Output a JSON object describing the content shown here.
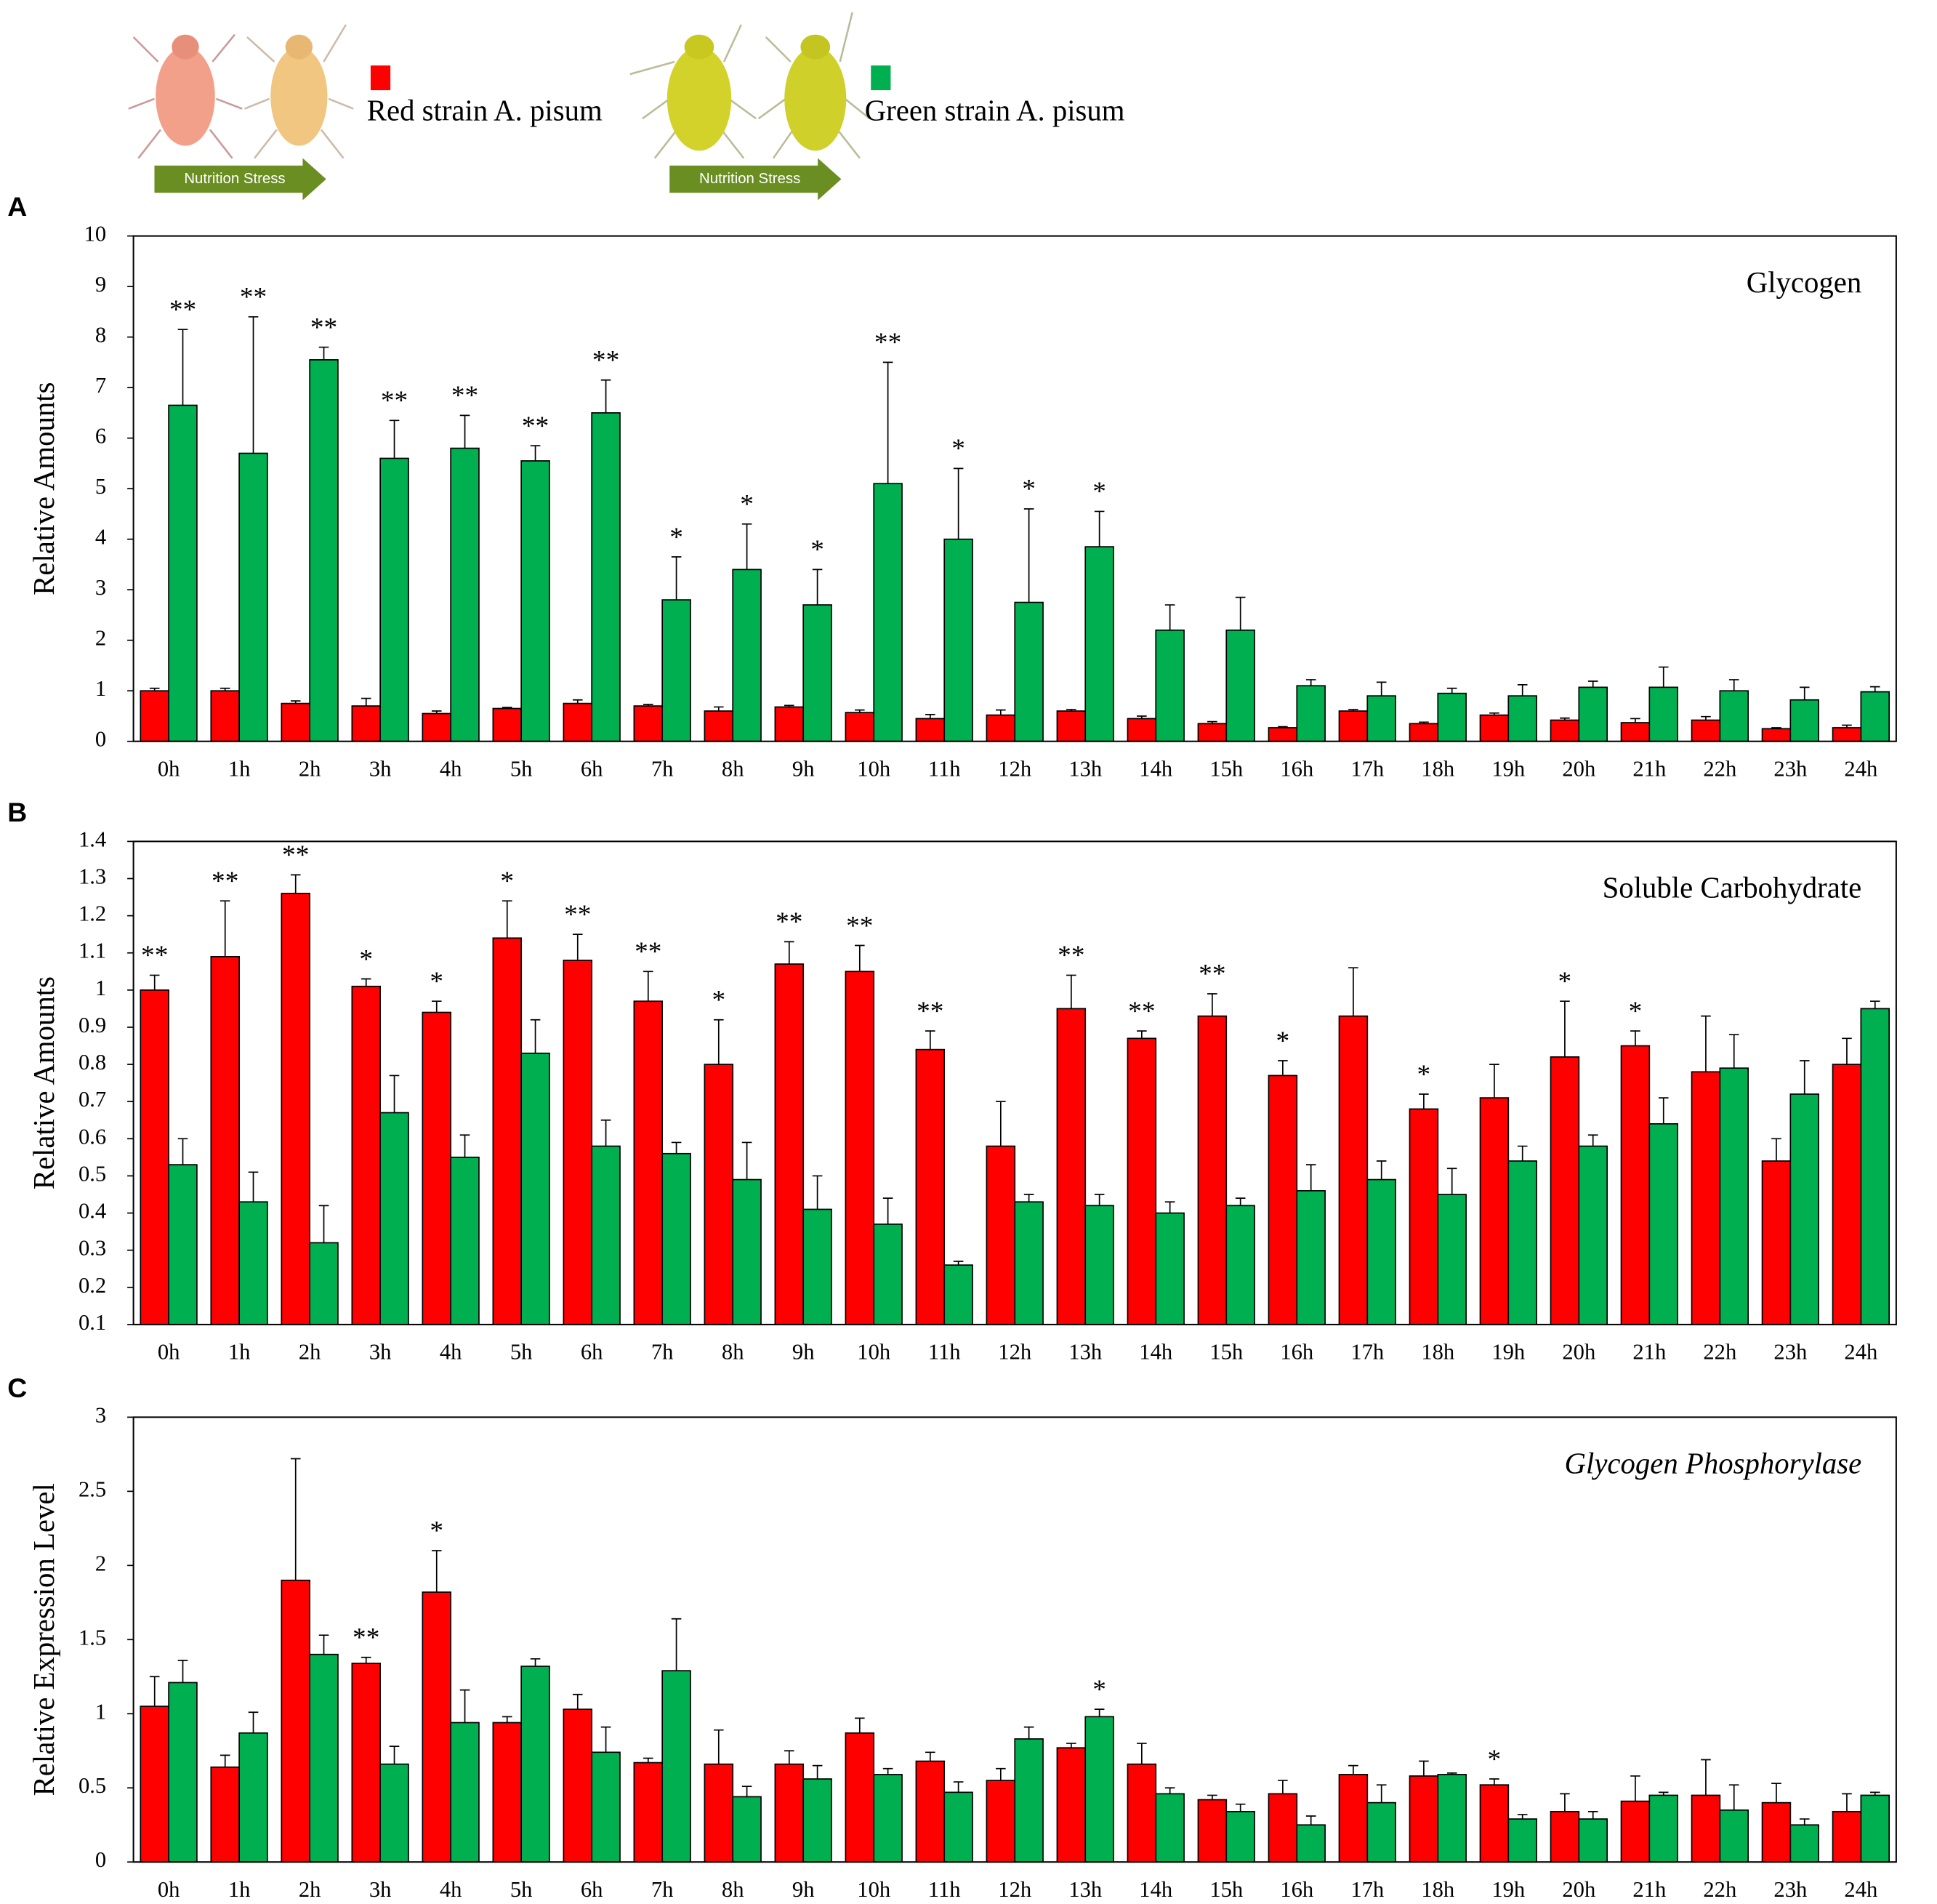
{
  "header": {
    "arrow_labels": [
      "Nutrition Stress",
      "Nutrition Stress"
    ]
  },
  "chart_data": [
    {
      "type": "bar",
      "panel": "A",
      "title": "Glycogen",
      "ylabel": "Relative Amounts",
      "categories": [
        "0h",
        "1h",
        "2h",
        "3h",
        "4h",
        "5h",
        "6h",
        "7h",
        "8h",
        "9h",
        "10h",
        "11h",
        "12h",
        "13h",
        "14h",
        "15h",
        "16h",
        "17h",
        "18h",
        "19h",
        "20h",
        "21h",
        "22h",
        "23h",
        "24h"
      ],
      "series": [
        {
          "name": "Red strain A. pisum",
          "color": "#ff0000",
          "values": [
            1.0,
            1.0,
            0.75,
            0.7,
            0.55,
            0.65,
            0.75,
            0.7,
            0.6,
            0.68,
            0.57,
            0.45,
            0.52,
            0.6,
            0.45,
            0.35,
            0.27,
            0.6,
            0.35,
            0.52,
            0.42,
            0.37,
            0.42,
            0.25,
            0.27
          ],
          "errors": [
            0.05,
            0.05,
            0.05,
            0.15,
            0.05,
            0.02,
            0.07,
            0.03,
            0.08,
            0.03,
            0.05,
            0.08,
            0.1,
            0.03,
            0.05,
            0.04,
            0.02,
            0.03,
            0.03,
            0.04,
            0.04,
            0.08,
            0.07,
            0.02,
            0.05
          ]
        },
        {
          "name": "Green strain A. pisum",
          "color": "#00b050",
          "values": [
            6.65,
            5.7,
            7.55,
            5.6,
            5.8,
            5.55,
            6.5,
            2.8,
            3.4,
            2.7,
            5.1,
            4.0,
            2.75,
            3.85,
            2.2,
            2.2,
            1.1,
            0.9,
            0.95,
            0.9,
            1.07,
            1.07,
            1.0,
            0.82,
            0.98
          ],
          "errors": [
            1.5,
            2.7,
            0.25,
            0.75,
            0.65,
            0.3,
            0.65,
            0.85,
            0.9,
            0.7,
            2.4,
            1.4,
            1.85,
            0.7,
            0.5,
            0.65,
            0.12,
            0.27,
            0.1,
            0.22,
            0.12,
            0.4,
            0.22,
            0.25,
            0.1
          ]
        }
      ],
      "annotations": [
        "**",
        "**",
        "**",
        "**",
        "**",
        "**",
        "**",
        "*",
        "*",
        "*",
        "**",
        "*",
        "*",
        "*",
        null,
        null,
        null,
        null,
        null,
        null,
        null,
        null,
        null,
        null,
        null
      ],
      "ylim": [
        0,
        10
      ],
      "yticks": [
        0,
        1,
        2,
        3,
        4,
        5,
        6,
        7,
        8,
        9,
        10
      ]
    },
    {
      "type": "bar",
      "panel": "B",
      "title": "Soluble Carbohydrate",
      "ylabel": "Relative Amounts",
      "categories": [
        "0h",
        "1h",
        "2h",
        "3h",
        "4h",
        "5h",
        "6h",
        "7h",
        "8h",
        "9h",
        "10h",
        "11h",
        "12h",
        "13h",
        "14h",
        "15h",
        "16h",
        "17h",
        "18h",
        "19h",
        "20h",
        "21h",
        "22h",
        "23h",
        "24h"
      ],
      "series": [
        {
          "color": "#ff0000",
          "values": [
            1.0,
            1.09,
            1.26,
            1.01,
            0.94,
            1.14,
            1.08,
            0.97,
            0.8,
            1.07,
            1.05,
            0.84,
            0.58,
            0.95,
            0.87,
            0.93,
            0.77,
            0.93,
            0.68,
            0.71,
            0.82,
            0.85,
            0.78,
            0.54,
            0.8
          ],
          "errors": [
            0.04,
            0.15,
            0.05,
            0.02,
            0.03,
            0.1,
            0.07,
            0.08,
            0.12,
            0.06,
            0.07,
            0.05,
            0.12,
            0.09,
            0.02,
            0.06,
            0.04,
            0.13,
            0.04,
            0.09,
            0.15,
            0.04,
            0.15,
            0.06,
            0.07
          ]
        },
        {
          "color": "#00b050",
          "values": [
            0.53,
            0.43,
            0.32,
            0.67,
            0.55,
            0.83,
            0.58,
            0.56,
            0.49,
            0.41,
            0.37,
            0.26,
            0.43,
            0.42,
            0.4,
            0.42,
            0.46,
            0.49,
            0.45,
            0.54,
            0.58,
            0.64,
            0.79,
            0.72,
            0.95
          ],
          "errors": [
            0.07,
            0.08,
            0.1,
            0.1,
            0.06,
            0.09,
            0.07,
            0.03,
            0.1,
            0.09,
            0.07,
            0.01,
            0.02,
            0.03,
            0.03,
            0.02,
            0.07,
            0.05,
            0.07,
            0.04,
            0.03,
            0.07,
            0.09,
            0.09,
            0.02
          ]
        }
      ],
      "annotations": [
        "**",
        "**",
        "**",
        "*",
        "*",
        "*",
        "**",
        "**",
        "*",
        "**",
        "**",
        "**",
        null,
        "**",
        "**",
        "**",
        "*",
        null,
        "*",
        null,
        "*",
        "*",
        null,
        null,
        null
      ],
      "ylim": [
        0.1,
        1.4
      ],
      "yticks": [
        0.1,
        0.2,
        0.3,
        0.4,
        0.5,
        0.6,
        0.7,
        0.8,
        0.9,
        1,
        1.1,
        1.2,
        1.3,
        1.4
      ]
    },
    {
      "type": "bar",
      "panel": "C",
      "title": "Glycogen Phosphorylase",
      "title_italic": true,
      "ylabel": "Relative Expression Level",
      "categories": [
        "0h",
        "1h",
        "2h",
        "3h",
        "4h",
        "5h",
        "6h",
        "7h",
        "8h",
        "9h",
        "10h",
        "11h",
        "12h",
        "13h",
        "14h",
        "15h",
        "16h",
        "17h",
        "18h",
        "19h",
        "20h",
        "21h",
        "22h",
        "23h",
        "24h"
      ],
      "series": [
        {
          "color": "#ff0000",
          "values": [
            1.05,
            0.64,
            1.9,
            1.34,
            1.82,
            0.94,
            1.03,
            0.67,
            0.66,
            0.66,
            0.87,
            0.68,
            0.55,
            0.77,
            0.66,
            0.42,
            0.46,
            0.59,
            0.58,
            0.52,
            0.34,
            0.41,
            0.45,
            0.4,
            0.34
          ],
          "errors": [
            0.2,
            0.08,
            0.82,
            0.04,
            0.28,
            0.04,
            0.1,
            0.03,
            0.23,
            0.09,
            0.1,
            0.06,
            0.08,
            0.03,
            0.14,
            0.03,
            0.09,
            0.06,
            0.1,
            0.04,
            0.12,
            0.17,
            0.24,
            0.13,
            0.12
          ]
        },
        {
          "color": "#00b050",
          "values": [
            1.21,
            0.87,
            1.4,
            0.66,
            0.94,
            1.32,
            0.74,
            1.29,
            0.44,
            0.56,
            0.59,
            0.47,
            0.83,
            0.98,
            0.46,
            0.34,
            0.25,
            0.4,
            0.59,
            0.29,
            0.29,
            0.45,
            0.35,
            0.25,
            0.45
          ],
          "errors": [
            0.15,
            0.14,
            0.13,
            0.12,
            0.22,
            0.05,
            0.17,
            0.35,
            0.07,
            0.09,
            0.04,
            0.07,
            0.08,
            0.05,
            0.04,
            0.05,
            0.06,
            0.12,
            0.01,
            0.03,
            0.05,
            0.02,
            0.17,
            0.04,
            0.02
          ]
        }
      ],
      "annotations": [
        null,
        null,
        null,
        "**",
        "*",
        null,
        null,
        null,
        null,
        null,
        null,
        null,
        null,
        "*",
        null,
        null,
        null,
        null,
        null,
        "*",
        null,
        null,
        null,
        null,
        null
      ],
      "ylim": [
        0,
        3
      ],
      "yticks": [
        0,
        0.5,
        1,
        1.5,
        2,
        2.5,
        3
      ]
    }
  ]
}
